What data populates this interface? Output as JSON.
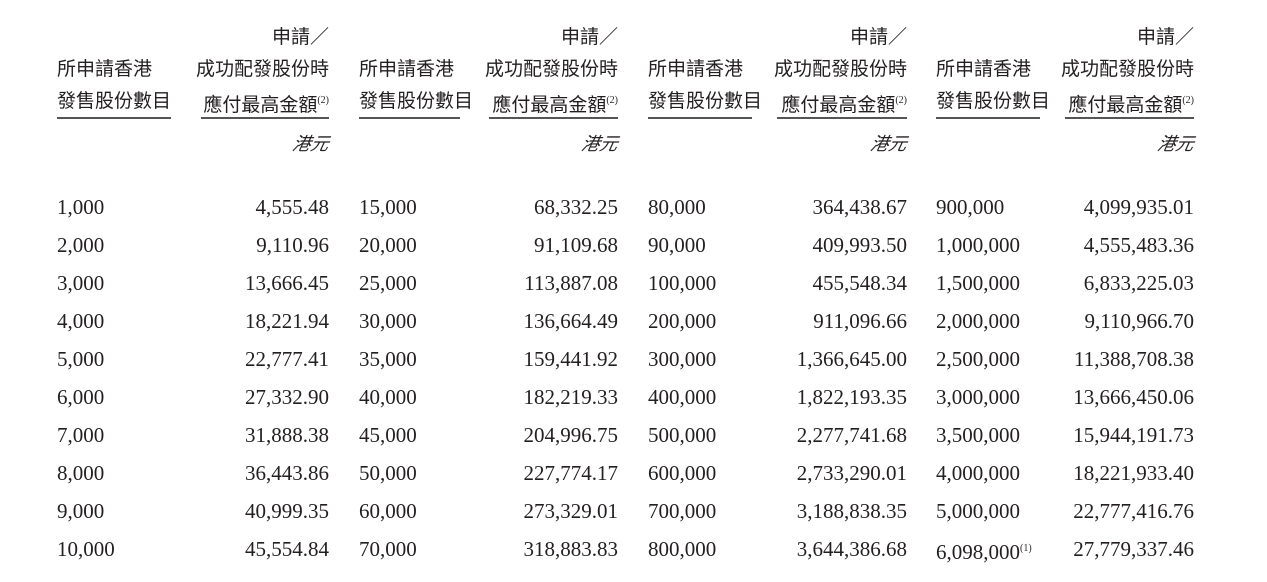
{
  "headers": {
    "shares": [
      "所申請香港",
      "發售股份數目"
    ],
    "amount": [
      "申請／",
      "成功配發股份時",
      "應付最高金額"
    ],
    "amount_note": "(2)",
    "unit": "港元"
  },
  "groups": [
    {
      "rows": [
        {
          "shares": "1,000",
          "amount": "4,555.48"
        },
        {
          "shares": "2,000",
          "amount": "9,110.96"
        },
        {
          "shares": "3,000",
          "amount": "13,666.45"
        },
        {
          "shares": "4,000",
          "amount": "18,221.94"
        },
        {
          "shares": "5,000",
          "amount": "22,777.41"
        },
        {
          "shares": "6,000",
          "amount": "27,332.90"
        },
        {
          "shares": "7,000",
          "amount": "31,888.38"
        },
        {
          "shares": "8,000",
          "amount": "36,443.86"
        },
        {
          "shares": "9,000",
          "amount": "40,999.35"
        },
        {
          "shares": "10,000",
          "amount": "45,554.84"
        }
      ]
    },
    {
      "rows": [
        {
          "shares": "15,000",
          "amount": "68,332.25"
        },
        {
          "shares": "20,000",
          "amount": "91,109.68"
        },
        {
          "shares": "25,000",
          "amount": "113,887.08"
        },
        {
          "shares": "30,000",
          "amount": "136,664.49"
        },
        {
          "shares": "35,000",
          "amount": "159,441.92"
        },
        {
          "shares": "40,000",
          "amount": "182,219.33"
        },
        {
          "shares": "45,000",
          "amount": "204,996.75"
        },
        {
          "shares": "50,000",
          "amount": "227,774.17"
        },
        {
          "shares": "60,000",
          "amount": "273,329.01"
        },
        {
          "shares": "70,000",
          "amount": "318,883.83"
        }
      ]
    },
    {
      "rows": [
        {
          "shares": "80,000",
          "amount": "364,438.67"
        },
        {
          "shares": "90,000",
          "amount": "409,993.50"
        },
        {
          "shares": "100,000",
          "amount": "455,548.34"
        },
        {
          "shares": "200,000",
          "amount": "911,096.66"
        },
        {
          "shares": "300,000",
          "amount": "1,366,645.00"
        },
        {
          "shares": "400,000",
          "amount": "1,822,193.35"
        },
        {
          "shares": "500,000",
          "amount": "2,277,741.68"
        },
        {
          "shares": "600,000",
          "amount": "2,733,290.01"
        },
        {
          "shares": "700,000",
          "amount": "3,188,838.35"
        },
        {
          "shares": "800,000",
          "amount": "3,644,386.68"
        }
      ]
    },
    {
      "rows": [
        {
          "shares": "900,000",
          "amount": "4,099,935.01"
        },
        {
          "shares": "1,000,000",
          "amount": "4,555,483.36"
        },
        {
          "shares": "1,500,000",
          "amount": "6,833,225.03"
        },
        {
          "shares": "2,000,000",
          "amount": "9,110,966.70"
        },
        {
          "shares": "2,500,000",
          "amount": "11,388,708.38"
        },
        {
          "shares": "3,000,000",
          "amount": "13,666,450.06"
        },
        {
          "shares": "3,500,000",
          "amount": "15,944,191.73"
        },
        {
          "shares": "4,000,000",
          "amount": "18,221,933.40"
        },
        {
          "shares": "5,000,000",
          "amount": "22,777,416.76"
        },
        {
          "shares": "6,098,000",
          "shares_note": "(1)",
          "amount": "27,779,337.46"
        }
      ]
    }
  ]
}
